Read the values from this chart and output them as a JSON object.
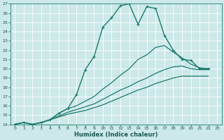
{
  "xlabel": "Humidex (Indice chaleur)",
  "bg_color": "#cce8e8",
  "grid_color": "#aacccc",
  "line_color": "#1a7a6e",
  "xlim": [
    -0.5,
    23.5
  ],
  "ylim": [
    14,
    27
  ],
  "lines": [
    {
      "x": [
        0,
        1,
        2,
        3,
        4,
        5,
        6,
        7,
        8,
        9,
        10,
        11,
        12,
        13,
        14,
        15,
        16,
        17,
        18,
        19,
        20,
        21,
        22
      ],
      "y": [
        14,
        14.2,
        14.0,
        14.2,
        14.5,
        15.2,
        15.7,
        17.2,
        19.9,
        21.3,
        24.5,
        25.5,
        26.8,
        27.0,
        24.8,
        26.7,
        26.5,
        23.6,
        22.0,
        21.0,
        20.9,
        20.0,
        20.0
      ],
      "marker": true,
      "lw": 1.0
    },
    {
      "x": [
        0,
        1,
        2,
        3,
        4,
        5,
        6,
        7,
        8,
        9,
        10,
        11,
        12,
        13,
        14,
        15,
        16,
        17,
        18,
        19,
        20,
        21,
        22
      ],
      "y": [
        14,
        14.2,
        14.0,
        14.2,
        14.5,
        15.2,
        15.7,
        16.0,
        16.5,
        17.0,
        17.8,
        18.5,
        19.3,
        20.0,
        21.0,
        21.5,
        22.3,
        22.5,
        21.8,
        21.2,
        20.5,
        20.1,
        20.0
      ],
      "marker": false,
      "lw": 0.9
    },
    {
      "x": [
        0,
        1,
        2,
        3,
        4,
        5,
        6,
        7,
        8,
        9,
        10,
        11,
        12,
        13,
        14,
        15,
        16,
        17,
        18,
        19,
        20,
        21,
        22
      ],
      "y": [
        14,
        14.2,
        14.0,
        14.2,
        14.5,
        14.9,
        15.3,
        15.6,
        15.9,
        16.2,
        16.7,
        17.2,
        17.7,
        18.1,
        18.6,
        19.0,
        19.5,
        19.9,
        20.2,
        20.3,
        20.0,
        19.9,
        19.9
      ],
      "marker": false,
      "lw": 0.9
    },
    {
      "x": [
        0,
        1,
        2,
        3,
        4,
        5,
        6,
        7,
        8,
        9,
        10,
        11,
        12,
        13,
        14,
        15,
        16,
        17,
        18,
        19,
        20,
        21,
        22
      ],
      "y": [
        14,
        14.2,
        14.0,
        14.2,
        14.5,
        14.8,
        15.1,
        15.3,
        15.5,
        15.8,
        16.1,
        16.5,
        16.9,
        17.3,
        17.7,
        18.0,
        18.4,
        18.7,
        19.0,
        19.2,
        19.2,
        19.2,
        19.2
      ],
      "marker": false,
      "lw": 0.9
    }
  ],
  "yticks": [
    14,
    15,
    16,
    17,
    18,
    19,
    20,
    21,
    22,
    23,
    24,
    25,
    26,
    27
  ],
  "xticks": [
    0,
    1,
    2,
    3,
    4,
    5,
    6,
    7,
    8,
    9,
    10,
    11,
    12,
    13,
    14,
    15,
    16,
    17,
    18,
    19,
    20,
    21,
    22,
    23
  ]
}
